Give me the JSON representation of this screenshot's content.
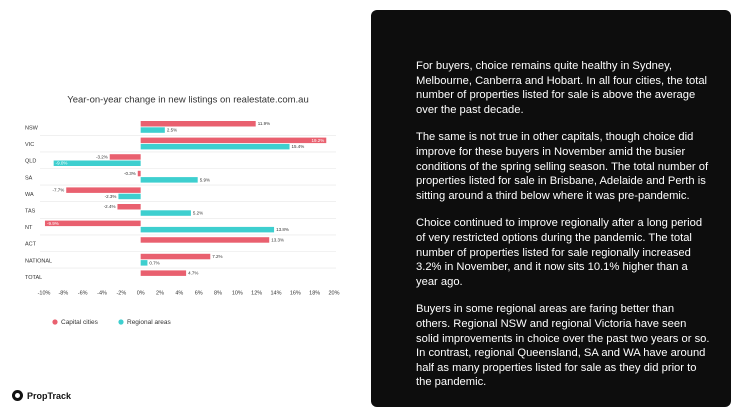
{
  "chart_data": {
    "type": "hbar",
    "title": "Year-on-year change in new listings on realestate.com.au",
    "categories": [
      "NSW",
      "VIC",
      "QLD",
      "SA",
      "WA",
      "TAS",
      "NT",
      "ACT",
      "NATIONAL",
      "TOTAL"
    ],
    "series": [
      {
        "name": "Capital cities",
        "color": "#e9606f",
        "values": [
          11.9,
          19.2,
          -3.2,
          -0.3,
          -7.7,
          -2.4,
          -9.9,
          13.3,
          7.2,
          4.7
        ],
        "value_labels": [
          "11.9%",
          "19.2%",
          "-3.2%",
          "-0.3%",
          "-7.7%",
          "-2.4%",
          "-9.9%",
          "13.3%",
          "7.2%",
          "4.7%"
        ]
      },
      {
        "name": "Regional areas",
        "color": "#3ecfcf",
        "values": [
          2.5,
          15.4,
          -9.0,
          5.9,
          -2.3,
          5.2,
          13.8,
          null,
          0.7,
          null
        ],
        "value_labels": [
          "2.5%",
          "15.4%",
          "-9.0%",
          "5.9%",
          "-2.3%",
          "5.2%",
          "13.8%",
          null,
          "0.7%",
          null
        ]
      }
    ],
    "xlim": [
      -10,
      20
    ],
    "xticks": [
      {
        "value": -10,
        "label": "-10%"
      },
      {
        "value": -8,
        "label": "-8%"
      },
      {
        "value": -6,
        "label": "-6%"
      },
      {
        "value": -4,
        "label": "-4%"
      },
      {
        "value": -2,
        "label": "-2%"
      },
      {
        "value": 0,
        "label": "0%"
      },
      {
        "value": 2,
        "label": "2%"
      },
      {
        "value": 4,
        "label": "4%"
      },
      {
        "value": 6,
        "label": "6%"
      },
      {
        "value": 8,
        "label": "8%"
      },
      {
        "value": 10,
        "label": "10%"
      },
      {
        "value": 12,
        "label": "12%"
      },
      {
        "value": 14,
        "label": "14%"
      },
      {
        "value": 16,
        "label": "16%"
      },
      {
        "value": 18,
        "label": "18%"
      },
      {
        "value": 20,
        "label": "20%"
      }
    ]
  },
  "panel": {
    "paragraphs": [
      "For buyers, choice remains quite healthy in Sydney, Melbourne, Canberra and Hobart. In all four cities, the total number of properties listed for sale is above the average over the past decade.",
      "The same is not true in other capitals, though choice did improve for these buyers in November amid the busier conditions of the spring selling season. The total number of properties listed for sale in Brisbane, Adelaide and Perth is sitting around a third below where it was pre-pandemic.",
      "Choice continued to improve regionally after a long period of very restricted options during the pandemic. The total number of properties listed for sale regionally increased 3.2% in November, and it now sits 10.1% higher than a year ago.",
      "Buyers in some regional areas are faring better than others. Regional NSW and regional Victoria have seen solid improvements in choice over the past two years or so. In contrast, regional Queensland, SA and WA have around half as many properties listed for sale as they did prior to the pandemic."
    ]
  },
  "logo": "PropTrack"
}
